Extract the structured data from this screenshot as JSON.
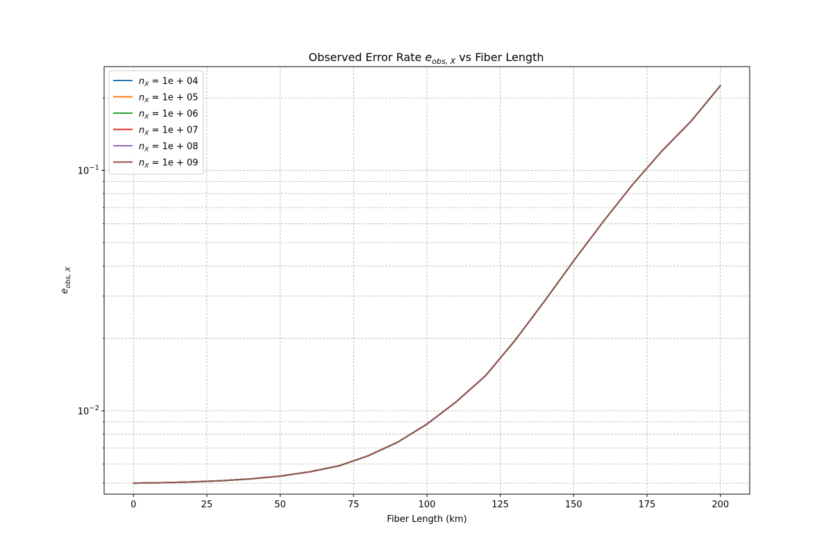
{
  "chart_data": {
    "type": "line",
    "title": {
      "prefix": "Observed Error Rate ",
      "var_main": "e",
      "var_sub": "obs, X",
      "suffix": " vs Fiber Length"
    },
    "xlabel": "Fiber Length (km)",
    "ylabel": {
      "main": "e",
      "sub": "obs, X"
    },
    "y_scale": "log",
    "xlim": [
      -10,
      210
    ],
    "ylim": [
      0.0045,
      0.27
    ],
    "x_ticks": [
      0,
      25,
      50,
      75,
      100,
      125,
      150,
      175,
      200
    ],
    "x_tick_labels": [
      "0",
      "25",
      "50",
      "75",
      "100",
      "125",
      "150",
      "175",
      "200"
    ],
    "y_major_ticks": [
      {
        "value": 0.01,
        "base": "10",
        "exp": "−2"
      },
      {
        "value": 0.1,
        "base": "10",
        "exp": "−1"
      }
    ],
    "y_minor_ticks": [
      0.005,
      0.006,
      0.007,
      0.008,
      0.009,
      0.02,
      0.03,
      0.04,
      0.05,
      0.06,
      0.07,
      0.08,
      0.09,
      0.2
    ],
    "grid": true,
    "legend_position": "top-left",
    "x": [
      0,
      10,
      20,
      30,
      40,
      50,
      60,
      70,
      80,
      90,
      100,
      110,
      120,
      130,
      140,
      150,
      160,
      170,
      180,
      190,
      200
    ],
    "curve": [
      0.005,
      0.00502,
      0.00506,
      0.00512,
      0.00521,
      0.00535,
      0.00557,
      0.0059,
      0.0065,
      0.0074,
      0.0088,
      0.0109,
      0.014,
      0.0196,
      0.0285,
      0.042,
      0.061,
      0.087,
      0.12,
      0.16,
      0.225
    ],
    "series": [
      {
        "name": {
          "main": "n",
          "sub": "X",
          "rest": " = 1e + 04"
        },
        "color": "#1f77b4"
      },
      {
        "name": {
          "main": "n",
          "sub": "X",
          "rest": " = 1e + 05"
        },
        "color": "#ff7f0e"
      },
      {
        "name": {
          "main": "n",
          "sub": "X",
          "rest": " = 1e + 06"
        },
        "color": "#2ca02c"
      },
      {
        "name": {
          "main": "n",
          "sub": "X",
          "rest": " = 1e + 07"
        },
        "color": "#d62728"
      },
      {
        "name": {
          "main": "n",
          "sub": "X",
          "rest": " = 1e + 08"
        },
        "color": "#9467bd"
      },
      {
        "name": {
          "main": "n",
          "sub": "X",
          "rest": " = 1e + 09"
        },
        "color": "#8c564b"
      }
    ]
  }
}
